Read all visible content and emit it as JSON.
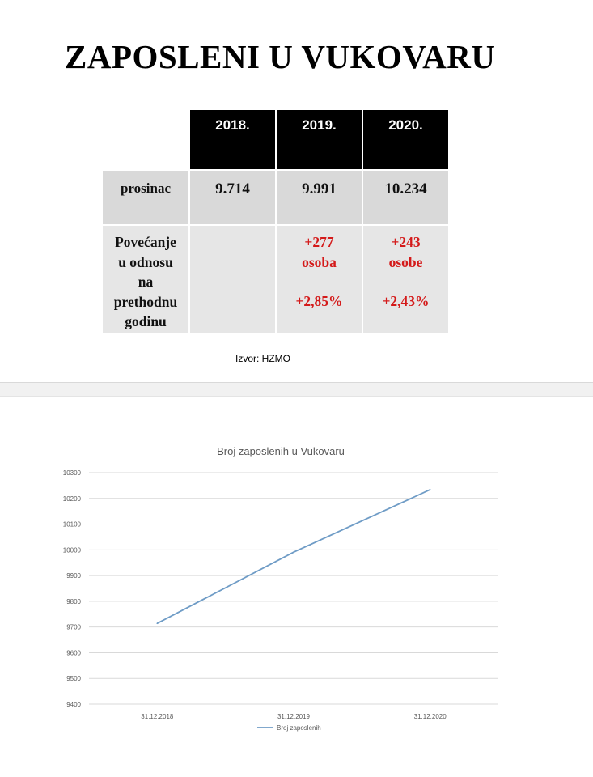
{
  "title": "ZAPOSLENI U VUKOVARU",
  "table": {
    "years": [
      "2018.",
      "2019.",
      "2020."
    ],
    "december_label": "prosinac",
    "december_values": [
      "9.714",
      "9.991",
      "10.234"
    ],
    "increase_label_lines": [
      "Povećanje",
      "u odnosu",
      "na",
      "prethodnu",
      "godinu"
    ],
    "increase": [
      {
        "count": "",
        "unit": "",
        "percent": ""
      },
      {
        "count": "+277",
        "unit": "osoba",
        "percent": "+2,85%"
      },
      {
        "count": "+243",
        "unit": "osobe",
        "percent": "+2,43%"
      }
    ]
  },
  "source": "Izvor: HZMO",
  "colors": {
    "line": "#6f9cc6",
    "grid": "#d9d9d9",
    "red": "#d41a1a"
  },
  "chart_data": {
    "type": "line",
    "title": "Broj zaposlenih u Vukovaru",
    "categories": [
      "31.12.2018",
      "31.12.2019",
      "31.12.2020"
    ],
    "series": [
      {
        "name": "Broj zaposlenih",
        "values": [
          9714,
          9991,
          10234
        ]
      }
    ],
    "ylim": [
      9400,
      10300
    ],
    "yticks": [
      9400,
      9500,
      9600,
      9700,
      9800,
      9900,
      10000,
      10100,
      10200,
      10300
    ],
    "grid": true,
    "legend": "bottom"
  }
}
